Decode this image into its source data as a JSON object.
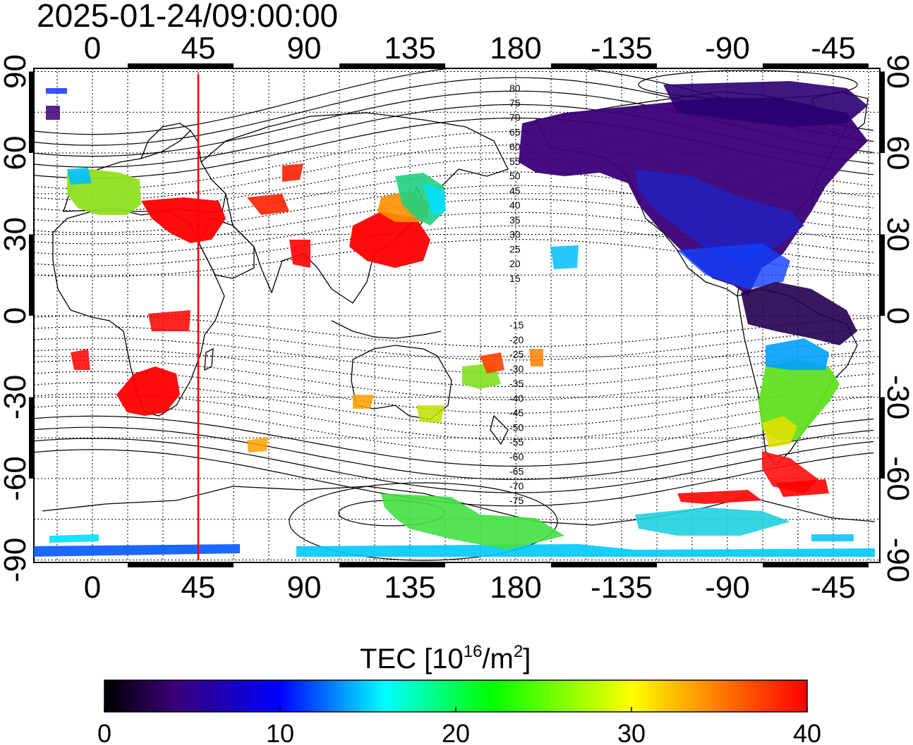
{
  "timestamp": "2025-01-24/09:00:00",
  "lon_ticks_top": [
    "0",
    "45",
    "90",
    "135",
    "180",
    "-135",
    "-90",
    "-45"
  ],
  "lon_ticks_bottom": [
    "0",
    "45",
    "90",
    "135",
    "180",
    "-135",
    "-90",
    "-45"
  ],
  "lat_ticks_left": [
    "90",
    "60",
    "30",
    "0",
    "-30",
    "-60",
    "-90"
  ],
  "lat_ticks_right": [
    "90",
    "60",
    "30",
    "0",
    "-30",
    "-60",
    "-90"
  ],
  "magnetic_lat_labels": [
    "80",
    "75",
    "70",
    "65",
    "60",
    "55",
    "50",
    "45",
    "40",
    "35",
    "30",
    "25",
    "20",
    "15",
    "-15",
    "-20",
    "-25",
    "-30",
    "-35",
    "-40",
    "-45",
    "-50",
    "-55",
    "-60",
    "-65",
    "-70",
    "-75"
  ],
  "colorbar": {
    "title_main": "TEC  [10",
    "title_sup1": "16",
    "title_mid": "/m",
    "title_sup2": "2",
    "title_end": "]",
    "ticks": [
      "0",
      "10",
      "20",
      "30",
      "40"
    ],
    "min": 0,
    "max": 40
  },
  "colors": {
    "meridian_line": "#ff0000",
    "scale": [
      "#000000",
      "#3a0078",
      "#0000ff",
      "#00ffff",
      "#00ff00",
      "#ffff00",
      "#ff8000",
      "#ff0000"
    ]
  },
  "marker_longitude": 45,
  "tec_regions": [
    {
      "name": "europe",
      "level": 26
    },
    {
      "name": "middle-east",
      "level": 40
    },
    {
      "name": "east-asia",
      "level": 40
    },
    {
      "name": "japan",
      "level": 19
    },
    {
      "name": "north-america",
      "level": 5
    },
    {
      "name": "south-america",
      "level": 24
    },
    {
      "name": "southern-africa",
      "level": 40
    },
    {
      "name": "australia",
      "level": 25
    },
    {
      "name": "antarctica",
      "level": 14
    }
  ]
}
